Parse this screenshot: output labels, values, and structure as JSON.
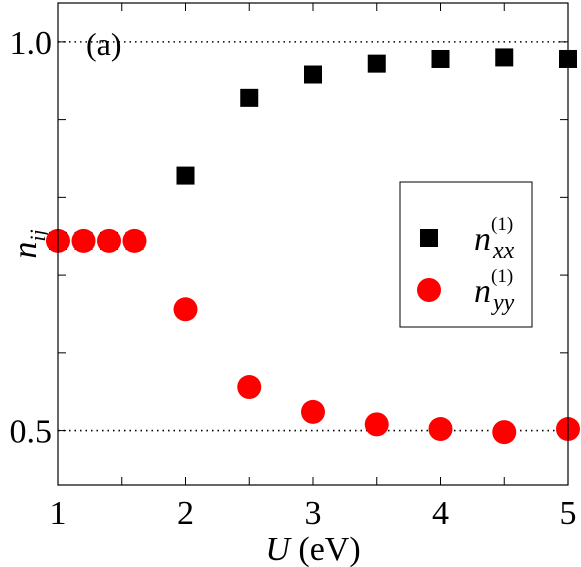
{
  "chart_data": {
    "type": "scatter",
    "panel_label": "(a)",
    "xlabel_var": "U",
    "xlabel_unit": " (eV)",
    "ylabel_main": "n",
    "ylabel_sub": "ij",
    "xlim": [
      1,
      5
    ],
    "ylim": [
      0.43,
      1.05
    ],
    "x_ticks": [
      1,
      1.5,
      2,
      2.5,
      3,
      3.5,
      4,
      4.5,
      5
    ],
    "x_tick_labels": [
      {
        "value": 1,
        "label": "1"
      },
      {
        "value": 2,
        "label": "2"
      },
      {
        "value": 3,
        "label": "3"
      },
      {
        "value": 4,
        "label": "4"
      },
      {
        "value": 5,
        "label": "5"
      }
    ],
    "y_ticks": [
      0.5,
      0.6,
      0.7,
      0.8,
      0.9,
      1.0
    ],
    "y_tick_labels": [
      {
        "value": 0.5,
        "label": "0.5"
      },
      {
        "value": 1.0,
        "label": "1.0"
      }
    ],
    "reference_lines": [
      0.5,
      1.0
    ],
    "legend_position": "center-right",
    "series": [
      {
        "name_main": "n",
        "name_sup": "(1)",
        "name_sub": "xx",
        "marker": "square",
        "color": "#000000",
        "x": [
          1.0,
          1.2,
          1.4,
          1.6,
          2.0,
          2.5,
          3.0,
          3.5,
          4.0,
          4.5,
          5.0
        ],
        "y": [
          0.744,
          0.744,
          0.744,
          0.744,
          0.828,
          0.928,
          0.958,
          0.972,
          0.978,
          0.98,
          0.978
        ]
      },
      {
        "name_main": "n",
        "name_sup": "(1)",
        "name_sub": "yy",
        "marker": "circle",
        "color": "#ff0000",
        "x": [
          1.0,
          1.2,
          1.4,
          1.6,
          2.0,
          2.5,
          3.0,
          3.5,
          4.0,
          4.5,
          5.0
        ],
        "y": [
          0.744,
          0.744,
          0.744,
          0.744,
          0.656,
          0.556,
          0.524,
          0.508,
          0.502,
          0.498,
          0.502
        ]
      }
    ]
  }
}
